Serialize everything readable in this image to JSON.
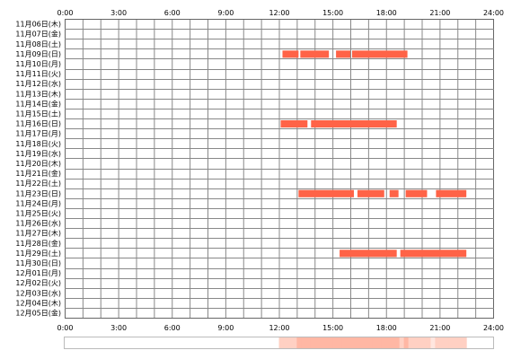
{
  "chart_data": {
    "type": "timeline",
    "x_ticks": [
      "0:00",
      "3:00",
      "6:00",
      "9:00",
      "12:00",
      "15:00",
      "18:00",
      "21:00",
      "24:00"
    ],
    "xlim": [
      0,
      24
    ],
    "grid": true,
    "colors": {
      "bar": "#FF6347",
      "grid": "#888888",
      "frame": "#666666",
      "summary_light": "#FFE6DF",
      "summary_mid": "#FFD0C3",
      "summary_dark": "#FFB7A4"
    },
    "rows": [
      {
        "label": "11月06日(木)",
        "segments": []
      },
      {
        "label": "11月07日(金)",
        "segments": []
      },
      {
        "label": "11月08日(土)",
        "segments": []
      },
      {
        "label": "11月09日(日)",
        "segments": [
          [
            12.2,
            13.1
          ],
          [
            13.2,
            14.8
          ],
          [
            15.2,
            16.0
          ],
          [
            16.1,
            19.2
          ]
        ]
      },
      {
        "label": "11月10日(月)",
        "segments": []
      },
      {
        "label": "11月11日(火)",
        "segments": []
      },
      {
        "label": "11月12日(水)",
        "segments": []
      },
      {
        "label": "11月13日(木)",
        "segments": []
      },
      {
        "label": "11月14日(金)",
        "segments": []
      },
      {
        "label": "11月15日(土)",
        "segments": []
      },
      {
        "label": "11月16日(日)",
        "segments": [
          [
            12.1,
            13.6
          ],
          [
            13.8,
            18.6
          ]
        ]
      },
      {
        "label": "11月17日(月)",
        "segments": []
      },
      {
        "label": "11月18日(火)",
        "segments": []
      },
      {
        "label": "11月19日(水)",
        "segments": []
      },
      {
        "label": "11月20日(木)",
        "segments": []
      },
      {
        "label": "11月21日(金)",
        "segments": []
      },
      {
        "label": "11月22日(土)",
        "segments": []
      },
      {
        "label": "11月23日(日)",
        "segments": [
          [
            13.1,
            16.2
          ],
          [
            16.4,
            17.9
          ],
          [
            18.2,
            18.7
          ],
          [
            19.1,
            20.3
          ],
          [
            20.8,
            22.5
          ]
        ]
      },
      {
        "label": "11月24日(月)",
        "segments": []
      },
      {
        "label": "11月25日(火)",
        "segments": []
      },
      {
        "label": "11月26日(水)",
        "segments": []
      },
      {
        "label": "11月27日(木)",
        "segments": []
      },
      {
        "label": "11月28日(金)",
        "segments": []
      },
      {
        "label": "11月29日(土)",
        "segments": [
          [
            15.4,
            18.6
          ],
          [
            18.8,
            22.5
          ]
        ]
      },
      {
        "label": "11月30日(日)",
        "segments": []
      },
      {
        "label": "12月01日(月)",
        "segments": []
      },
      {
        "label": "12月02日(火)",
        "segments": []
      },
      {
        "label": "12月03日(水)",
        "segments": []
      },
      {
        "label": "12月04日(木)",
        "segments": []
      },
      {
        "label": "12月05日(金)",
        "segments": []
      }
    ]
  }
}
